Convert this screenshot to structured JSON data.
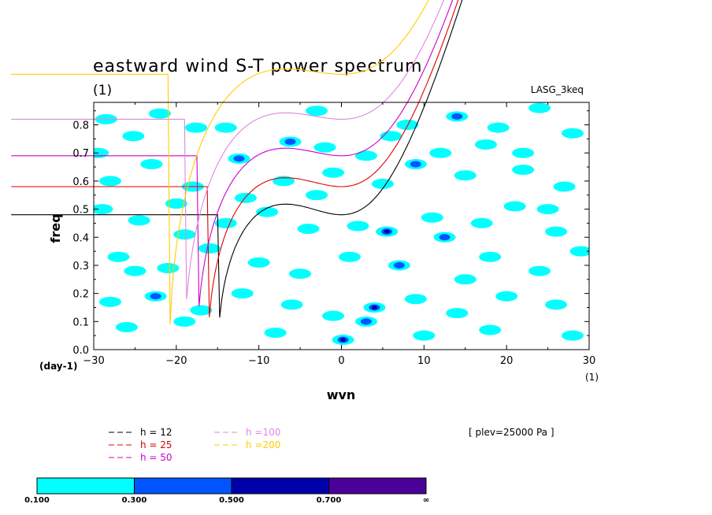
{
  "chart_data": {
    "type": "heatmap",
    "title": "eastward wind S-T power spectrum",
    "subtitle": "(1)",
    "right_label": "LASG_3keq",
    "xlabel": "wvn",
    "ylabel": "freq",
    "x_unit": "(1)",
    "y_unit": "(day-1)",
    "xlim": [
      -30,
      30
    ],
    "ylim": [
      0.0,
      0.88
    ],
    "x_ticks": [
      -30,
      -20,
      -10,
      0,
      10,
      20,
      30
    ],
    "x_tick_labels": [
      "−30",
      "−20",
      "−10",
      "0",
      "10",
      "20",
      "30"
    ],
    "y_ticks": [
      0.0,
      0.1,
      0.2,
      0.3,
      0.4,
      0.5,
      0.6,
      0.7,
      0.8
    ],
    "y_tick_labels": [
      "0.0",
      "0.1",
      "0.2",
      "0.3",
      "0.4",
      "0.5",
      "0.6",
      "0.7",
      "0.8"
    ],
    "level_annotation": "[ plev=25000 Pa ]",
    "color_levels": [
      {
        "from": "0.100",
        "to": "0.300",
        "color": "#00ffff"
      },
      {
        "from": "0.300",
        "to": "0.500",
        "color": "#0055ff"
      },
      {
        "from": "0.500",
        "to": "0.700",
        "color": "#0000aa"
      },
      {
        "from": "0.700",
        "to": "∞",
        "color": "#4b0099"
      }
    ],
    "colorbar_labels": [
      "0.100",
      "0.300",
      "0.500",
      "0.700",
      "∞"
    ],
    "series": [
      {
        "name": "h = 12",
        "color": "#000000",
        "min_freq": 0.48
      },
      {
        "name": "h = 25",
        "color": "#dd0000",
        "min_freq": 0.58
      },
      {
        "name": "h = 50",
        "color": "#cc00cc",
        "min_freq": 0.69
      },
      {
        "name": "h =100",
        "color": "#dd88dd",
        "min_freq": 0.82
      },
      {
        "name": "h =200",
        "color": "#ffcc00",
        "min_freq": 0.98
      }
    ],
    "contour_cells": [
      [
        -28.5,
        0.82,
        1
      ],
      [
        -25.2,
        0.76,
        1
      ],
      [
        -22,
        0.84,
        1
      ],
      [
        -17.6,
        0.79,
        1
      ],
      [
        -12.4,
        0.68,
        2
      ],
      [
        -6.2,
        0.74,
        2
      ],
      [
        -2,
        0.72,
        1
      ],
      [
        3,
        0.69,
        1
      ],
      [
        8,
        0.8,
        1
      ],
      [
        14,
        0.83,
        2
      ],
      [
        19,
        0.79,
        1
      ],
      [
        24,
        0.86,
        1
      ],
      [
        28,
        0.77,
        1
      ],
      [
        -28,
        0.6,
        1
      ],
      [
        -23,
        0.66,
        1
      ],
      [
        -18,
        0.58,
        1
      ],
      [
        -11.6,
        0.54,
        1
      ],
      [
        -7,
        0.6,
        1
      ],
      [
        -1,
        0.63,
        1
      ],
      [
        5,
        0.59,
        1
      ],
      [
        9,
        0.66,
        2
      ],
      [
        15,
        0.62,
        1
      ],
      [
        22,
        0.64,
        1
      ],
      [
        27,
        0.58,
        1
      ],
      [
        -29,
        0.5,
        1
      ],
      [
        -24.5,
        0.46,
        1
      ],
      [
        -19,
        0.41,
        1
      ],
      [
        -14,
        0.45,
        1
      ],
      [
        -9,
        0.49,
        1
      ],
      [
        -4,
        0.43,
        1
      ],
      [
        2,
        0.44,
        1
      ],
      [
        5.5,
        0.42,
        3
      ],
      [
        11,
        0.47,
        1
      ],
      [
        17,
        0.45,
        1
      ],
      [
        21,
        0.51,
        1
      ],
      [
        26,
        0.42,
        1
      ],
      [
        -27,
        0.33,
        1
      ],
      [
        -21,
        0.29,
        1
      ],
      [
        -16,
        0.36,
        1
      ],
      [
        -10,
        0.31,
        1
      ],
      [
        -5,
        0.27,
        1
      ],
      [
        1,
        0.33,
        1
      ],
      [
        7,
        0.3,
        2
      ],
      [
        12.5,
        0.4,
        2
      ],
      [
        18,
        0.33,
        1
      ],
      [
        24,
        0.28,
        1
      ],
      [
        29,
        0.35,
        1
      ],
      [
        -28,
        0.17,
        1
      ],
      [
        -22.5,
        0.19,
        2
      ],
      [
        -17,
        0.14,
        1
      ],
      [
        -12,
        0.2,
        1
      ],
      [
        -6,
        0.16,
        1
      ],
      [
        -1,
        0.12,
        1
      ],
      [
        4,
        0.15,
        3
      ],
      [
        3,
        0.1,
        2
      ],
      [
        0.2,
        0.035,
        3
      ],
      [
        9,
        0.18,
        1
      ],
      [
        14,
        0.13,
        1
      ],
      [
        20,
        0.19,
        1
      ],
      [
        26,
        0.16,
        1
      ],
      [
        -26,
        0.08,
        1
      ],
      [
        -19,
        0.1,
        1
      ],
      [
        -8,
        0.06,
        1
      ],
      [
        10,
        0.05,
        1
      ],
      [
        18,
        0.07,
        1
      ],
      [
        28,
        0.05,
        1
      ],
      [
        -29.5,
        0.7,
        1
      ],
      [
        -14,
        0.79,
        1
      ],
      [
        -3,
        0.85,
        1
      ],
      [
        6,
        0.76,
        1
      ],
      [
        12,
        0.7,
        1
      ],
      [
        17.5,
        0.73,
        1
      ],
      [
        22,
        0.7,
        1
      ],
      [
        -20,
        0.52,
        1
      ],
      [
        -25,
        0.28,
        1
      ],
      [
        15,
        0.25,
        1
      ],
      [
        -3,
        0.55,
        1
      ],
      [
        25,
        0.5,
        1
      ]
    ]
  }
}
